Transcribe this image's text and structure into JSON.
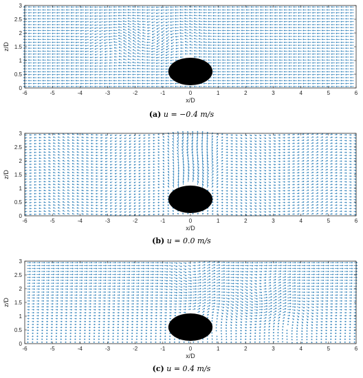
{
  "colors": {
    "vector": "#1f77b4",
    "cylinder": "#000000",
    "axis": "#222222"
  },
  "chart_data": [
    {
      "type": "quiver",
      "caption_tag": "(a)",
      "caption_text": "u = −0.4 m/s",
      "xlabel": "x/D",
      "ylabel": "z/D",
      "xlim": [
        -6,
        6
      ],
      "ylim": [
        0,
        3
      ],
      "xticks": [
        "-6",
        "-5",
        "-4",
        "-3",
        "-2",
        "-1",
        "0",
        "1",
        "2",
        "3",
        "4",
        "5",
        "6"
      ],
      "yticks": [
        "0",
        "0.5",
        "1",
        "1.5",
        "2",
        "2.5",
        "3"
      ],
      "cylinder": {
        "x": 0,
        "z": 0.6,
        "diameter": 1
      },
      "flow": "leftward",
      "inflow_velocity_m_s": -0.4
    },
    {
      "type": "quiver",
      "caption_tag": "(b)",
      "caption_text": "u = 0.0 m/s",
      "xlabel": "x/D",
      "ylabel": "z/D",
      "xlim": [
        -6,
        6
      ],
      "ylim": [
        0,
        3
      ],
      "xticks": [
        "-6",
        "-5",
        "-4",
        "-3",
        "-2",
        "-1",
        "0",
        "1",
        "2",
        "3",
        "4",
        "5",
        "6"
      ],
      "yticks": [
        "0",
        "0.5",
        "1",
        "1.5",
        "2",
        "2.5",
        "3"
      ],
      "cylinder": {
        "x": 0,
        "z": 0.6,
        "diameter": 1
      },
      "flow": "still",
      "inflow_velocity_m_s": 0.0
    },
    {
      "type": "quiver",
      "caption_tag": "(c)",
      "caption_text": "u = 0.4 m/s",
      "xlabel": "x/D",
      "ylabel": "z/D",
      "xlim": [
        -6,
        6
      ],
      "ylim": [
        0,
        3
      ],
      "xticks": [
        "-6",
        "-5",
        "-4",
        "-3",
        "-2",
        "-1",
        "0",
        "1",
        "2",
        "3",
        "4",
        "5",
        "6"
      ],
      "yticks": [
        "0",
        "0.5",
        "1",
        "1.5",
        "2",
        "2.5",
        "3"
      ],
      "cylinder": {
        "x": 0,
        "z": 0.6,
        "diameter": 1
      },
      "flow": "rightward",
      "inflow_velocity_m_s": 0.4
    }
  ]
}
